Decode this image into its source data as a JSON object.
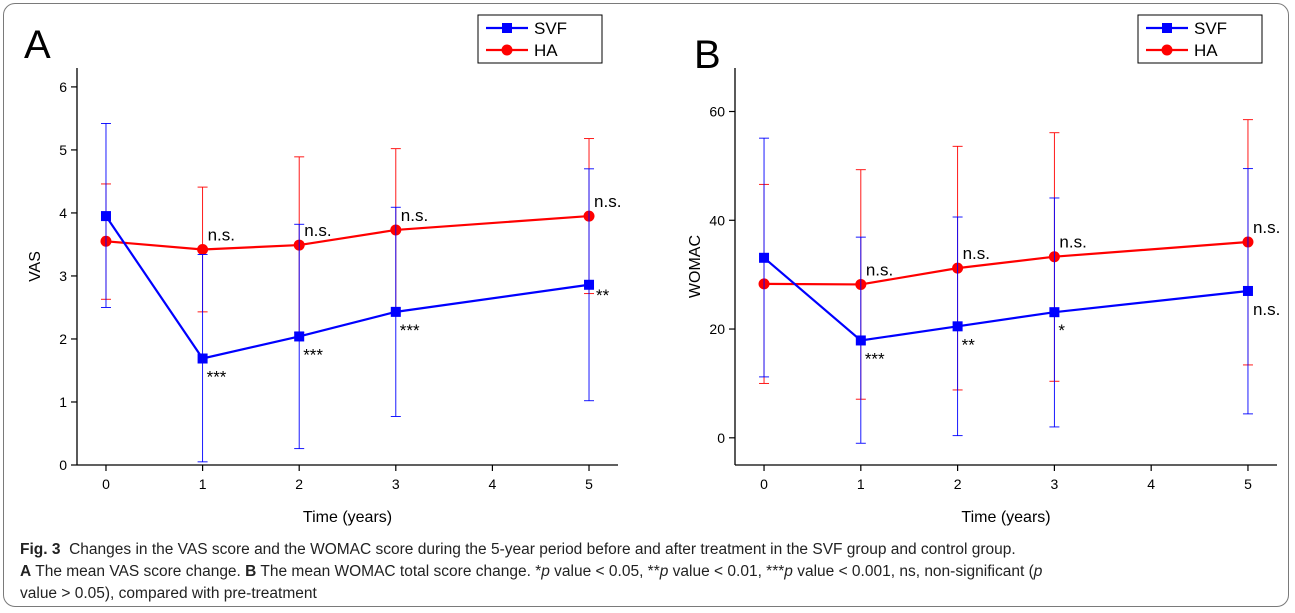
{
  "chart_data": [
    {
      "type": "line",
      "panel_label": "A",
      "xlabel": "Time (years)",
      "ylabel": "VAS",
      "x": [
        0,
        1,
        2,
        3,
        5
      ],
      "xticks": [
        0,
        1,
        2,
        3,
        4,
        5
      ],
      "xlim": [
        -0.3,
        5.3
      ],
      "yticks": [
        0,
        1,
        2,
        3,
        4,
        5,
        6
      ],
      "ylim": [
        0,
        6.3
      ],
      "legend": "top-right",
      "series": [
        {
          "name": "SVF",
          "color": "#0000ff",
          "marker": "square",
          "values": [
            3.95,
            1.69,
            2.04,
            2.43,
            2.86
          ],
          "error_low": [
            2.5,
            0.05,
            0.26,
            0.77,
            1.02
          ],
          "error_high": [
            5.42,
            3.34,
            3.82,
            4.09,
            4.7
          ],
          "annotations": [
            "",
            "***",
            "***",
            "***",
            "**"
          ]
        },
        {
          "name": "HA",
          "color": "#ff0000",
          "marker": "circle",
          "values": [
            3.55,
            3.42,
            3.49,
            3.73,
            3.95
          ],
          "error_low": [
            2.63,
            2.43,
            2.1,
            2.44,
            2.72
          ],
          "error_high": [
            4.46,
            4.41,
            4.89,
            5.02,
            5.18
          ],
          "annotations": [
            "",
            "n.s.",
            "n.s.",
            "n.s.",
            "n.s."
          ]
        }
      ]
    },
    {
      "type": "line",
      "panel_label": "B",
      "xlabel": "Time (years)",
      "ylabel": "WOMAC",
      "x": [
        0,
        1,
        2,
        3,
        5
      ],
      "xticks": [
        0,
        1,
        2,
        3,
        4,
        5
      ],
      "xlim": [
        -0.3,
        5.3
      ],
      "yticks": [
        0,
        20,
        40,
        60
      ],
      "ylim": [
        -5,
        68
      ],
      "legend": "top-right",
      "series": [
        {
          "name": "SVF",
          "color": "#0000ff",
          "marker": "square",
          "values": [
            33.1,
            17.9,
            20.5,
            23.1,
            27.0
          ],
          "error_low": [
            11.2,
            -1.0,
            0.4,
            2.0,
            4.4
          ],
          "error_high": [
            55.1,
            36.9,
            40.6,
            44.1,
            49.5
          ],
          "annotations": [
            "",
            "***",
            "**",
            "*",
            "n.s."
          ]
        },
        {
          "name": "HA",
          "color": "#ff0000",
          "marker": "circle",
          "values": [
            28.3,
            28.2,
            31.2,
            33.3,
            36.0
          ],
          "error_low": [
            10.0,
            7.1,
            8.8,
            10.4,
            13.4
          ],
          "error_high": [
            46.6,
            49.3,
            53.6,
            56.1,
            58.5
          ],
          "annotations": [
            "",
            "n.s.",
            "n.s.",
            "n.s.",
            "n.s."
          ]
        }
      ]
    }
  ],
  "caption": {
    "fig_label": "Fig. 3",
    "line1": "Changes in the VAS score and the WOMAC score during the 5-year period before and after treatment in the SVF group and control group.",
    "a_label": "A",
    "a_text": " The mean VAS score change. ",
    "b_label": "B",
    "b_text": " The mean WOMAC total score change. *",
    "p1": "p",
    "t1": " value < 0.05, **",
    "p2": "p",
    "t2": " value < 0.01, ***",
    "p3": "p",
    "t3": " value < 0.001, ns, non-significant (",
    "p4": "p",
    "line3": "value > 0.05), compared with pre-treatment"
  }
}
